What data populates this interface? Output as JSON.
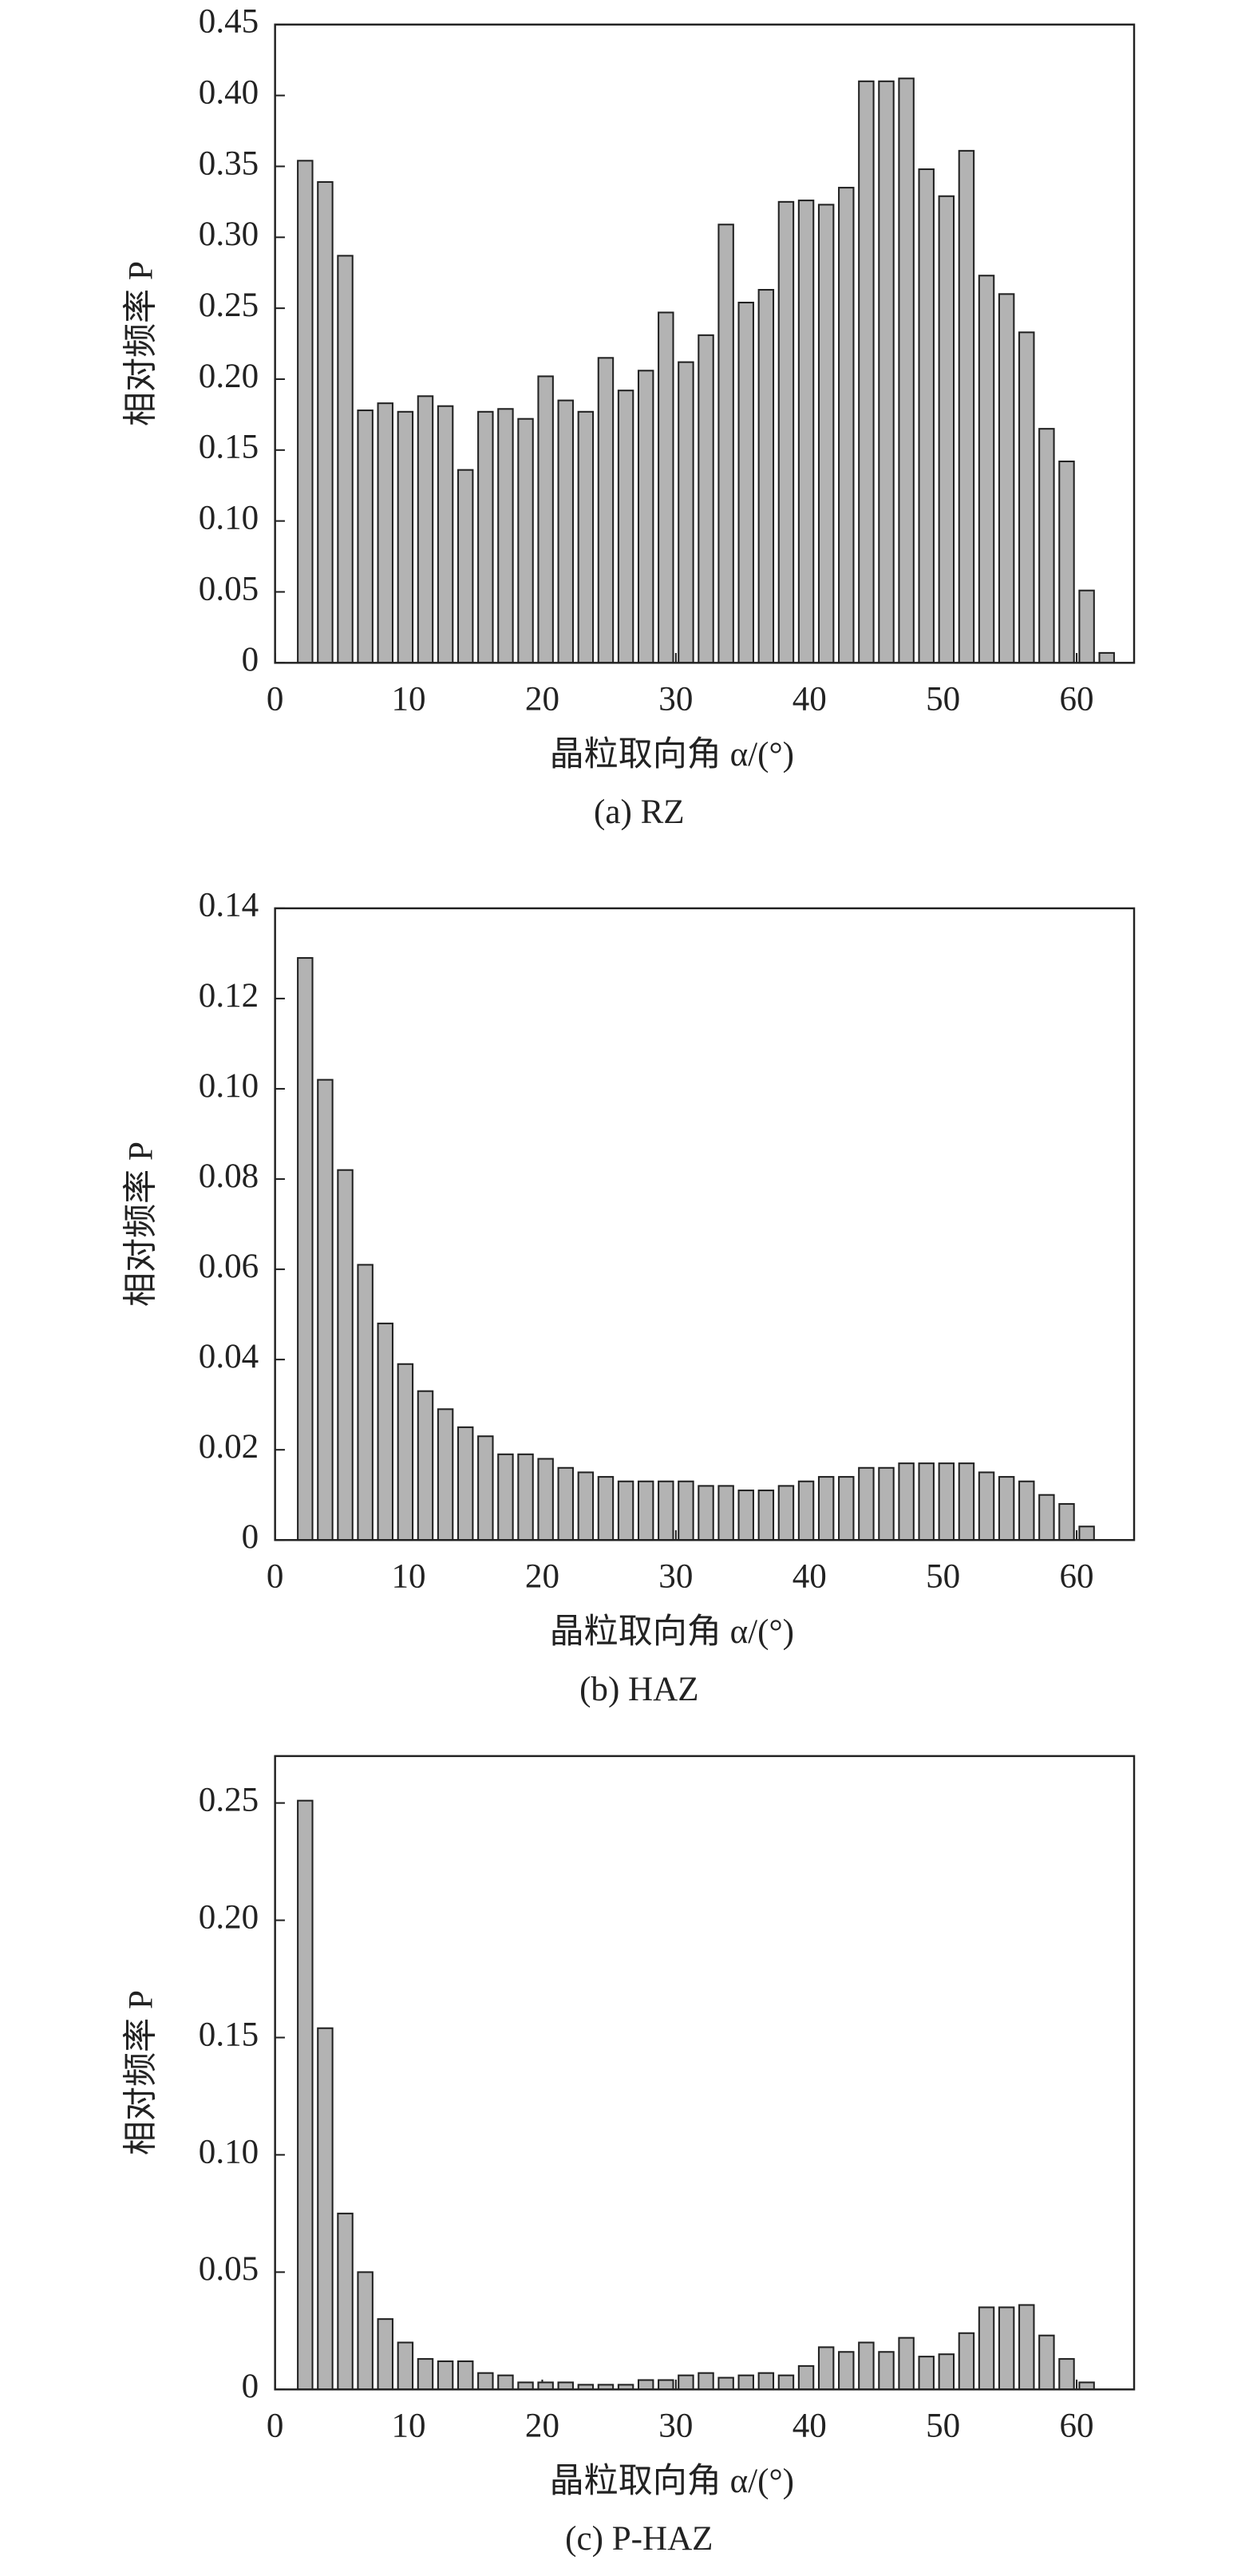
{
  "chart_data": [
    {
      "type": "bar",
      "caption": "(a) RZ",
      "xlabel": "晶粒取向角 α/(°)",
      "ylabel": "相对频率 P",
      "color": "#b3b3b3",
      "x": [
        2.25,
        3.75,
        5.25,
        6.75,
        8.25,
        9.75,
        11.25,
        12.75,
        14.25,
        15.75,
        17.25,
        18.75,
        20.25,
        21.75,
        23.25,
        24.75,
        26.25,
        27.75,
        29.25,
        30.75,
        32.25,
        33.75,
        35.25,
        36.75,
        38.25,
        39.75,
        41.25,
        42.75,
        44.25,
        45.75,
        47.25,
        48.75,
        50.25,
        51.75,
        53.25,
        54.75,
        56.25,
        57.75,
        59.25,
        60.75,
        62.25
      ],
      "values": [
        0.354,
        0.339,
        0.287,
        0.178,
        0.183,
        0.177,
        0.188,
        0.181,
        0.136,
        0.177,
        0.179,
        0.172,
        0.202,
        0.185,
        0.177,
        0.215,
        0.192,
        0.206,
        0.247,
        0.212,
        0.231,
        0.309,
        0.254,
        0.263,
        0.325,
        0.326,
        0.323,
        0.335,
        0.41,
        0.41,
        0.412,
        0.348,
        0.329,
        0.361,
        0.273,
        0.26,
        0.233,
        0.165,
        0.142,
        0.051,
        0.007
      ],
      "xlim": [
        0,
        64.3
      ],
      "ylim": [
        0,
        0.45
      ],
      "xticks": [
        0,
        10,
        20,
        30,
        40,
        50,
        60
      ],
      "yticks": [
        0,
        {
          "value": 0.05,
          "label": "0.05"
        },
        {
          "value": 0.1,
          "label": "0.10"
        },
        {
          "value": 0.15,
          "label": "0.15"
        },
        {
          "value": 0.2,
          "label": "0.20"
        },
        {
          "value": 0.25,
          "label": "0.25"
        },
        {
          "value": 0.3,
          "label": "0.30"
        },
        {
          "value": 0.35,
          "label": "0.35"
        },
        {
          "value": 0.4,
          "label": "0.40"
        },
        {
          "value": 0.45,
          "label": "0.45"
        }
      ]
    },
    {
      "type": "bar",
      "caption": "(b) HAZ",
      "xlabel": "晶粒取向角 α/(°)",
      "ylabel": "相对频率 P",
      "color": "#b3b3b3",
      "x": [
        2.25,
        3.75,
        5.25,
        6.75,
        8.25,
        9.75,
        11.25,
        12.75,
        14.25,
        15.75,
        17.25,
        18.75,
        20.25,
        21.75,
        23.25,
        24.75,
        26.25,
        27.75,
        29.25,
        30.75,
        32.25,
        33.75,
        35.25,
        36.75,
        38.25,
        39.75,
        41.25,
        42.75,
        44.25,
        45.75,
        47.25,
        48.75,
        50.25,
        51.75,
        53.25,
        54.75,
        56.25,
        57.75,
        59.25,
        60.75
      ],
      "values": [
        0.129,
        0.102,
        0.082,
        0.061,
        0.048,
        0.039,
        0.033,
        0.029,
        0.025,
        0.023,
        0.019,
        0.019,
        0.018,
        0.016,
        0.015,
        0.014,
        0.013,
        0.013,
        0.013,
        0.013,
        0.012,
        0.012,
        0.011,
        0.011,
        0.012,
        0.013,
        0.014,
        0.014,
        0.016,
        0.016,
        0.017,
        0.017,
        0.017,
        0.017,
        0.015,
        0.014,
        0.013,
        0.01,
        0.008,
        0.003
      ],
      "xlim": [
        0,
        64.3
      ],
      "ylim": [
        0,
        0.14
      ],
      "xticks": [
        0,
        10,
        20,
        30,
        40,
        50,
        60
      ],
      "yticks": [
        0,
        {
          "value": 0.02,
          "label": "0.02"
        },
        {
          "value": 0.04,
          "label": "0.04"
        },
        {
          "value": 0.06,
          "label": "0.06"
        },
        {
          "value": 0.08,
          "label": "0.08"
        },
        {
          "value": 0.1,
          "label": "0.10"
        },
        {
          "value": 0.12,
          "label": "0.12"
        },
        {
          "value": 0.14,
          "label": "0.14"
        }
      ]
    },
    {
      "type": "bar",
      "caption": "(c) P-HAZ",
      "xlabel": "晶粒取向角 α/(°)",
      "ylabel": "相对频率 P",
      "color": "#b3b3b3",
      "x": [
        2.25,
        3.75,
        5.25,
        6.75,
        8.25,
        9.75,
        11.25,
        12.75,
        14.25,
        15.75,
        17.25,
        18.75,
        20.25,
        21.75,
        23.25,
        24.75,
        26.25,
        27.75,
        29.25,
        30.75,
        32.25,
        33.75,
        35.25,
        36.75,
        38.25,
        39.75,
        41.25,
        42.75,
        44.25,
        45.75,
        47.25,
        48.75,
        50.25,
        51.75,
        53.25,
        54.75,
        56.25,
        57.75,
        59.25,
        60.75
      ],
      "values": [
        0.251,
        0.154,
        0.075,
        0.05,
        0.03,
        0.02,
        0.013,
        0.012,
        0.012,
        0.007,
        0.006,
        0.003,
        0.003,
        0.003,
        0.002,
        0.002,
        0.002,
        0.004,
        0.004,
        0.006,
        0.007,
        0.005,
        0.006,
        0.007,
        0.006,
        0.01,
        0.018,
        0.016,
        0.02,
        0.016,
        0.022,
        0.014,
        0.015,
        0.024,
        0.035,
        0.035,
        0.036,
        0.023,
        0.013,
        0.003
      ],
      "xlim": [
        0,
        64.3
      ],
      "ylim": [
        0,
        0.27
      ],
      "xticks": [
        0,
        10,
        20,
        30,
        40,
        50,
        60
      ],
      "yticks": [
        0,
        {
          "value": 0.05,
          "label": "0.05"
        },
        {
          "value": 0.1,
          "label": "0.10"
        },
        {
          "value": 0.15,
          "label": "0.15"
        },
        {
          "value": 0.2,
          "label": "0.20"
        },
        {
          "value": 0.25,
          "label": "0.25"
        }
      ]
    }
  ]
}
